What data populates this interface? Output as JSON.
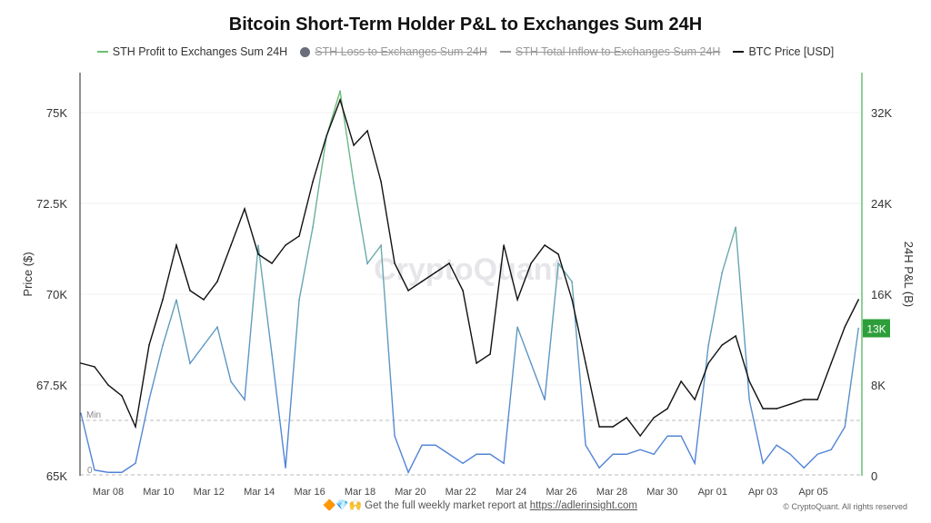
{
  "chart_data": {
    "type": "line",
    "title": "Bitcoin Short-Term Holder P&L to Exchanges Sum 24H",
    "legend": [
      {
        "name": "STH Profit to Exchanges Sum 24H",
        "color": "#6cbf73",
        "enabled": true
      },
      {
        "name": "STH Loss to Exchanges Sum 24H",
        "color": "#6b6e7a",
        "enabled": false
      },
      {
        "name": "STH Total Inflow to Exchanges Sum 24H",
        "color": "#888888",
        "enabled": false
      },
      {
        "name": "BTC Price [USD]",
        "color": "#111111",
        "enabled": true
      }
    ],
    "legend_placement": "top",
    "ylabel_left": "Price ($)",
    "ylabel_right": "24H P&L (B)",
    "ylim_left": [
      65000,
      76000
    ],
    "ylim_right": [
      0,
      35200
    ],
    "yticks_left": [
      "65K",
      "67.5K",
      "70K",
      "72.5K",
      "75K"
    ],
    "yticks_right": [
      "0",
      "8K",
      "16K",
      "24K",
      "32K"
    ],
    "xticks": [
      "Mar 08",
      "Mar 10",
      "Mar 12",
      "Mar 14",
      "Mar 16",
      "Mar 18",
      "Mar 20",
      "Mar 22",
      "Mar 24",
      "Mar 26",
      "Mar 28",
      "Mar 30",
      "Apr 01",
      "Apr 03",
      "Apr 05"
    ],
    "current_value_label": "13K",
    "min_label": "Min",
    "zero_label": "0",
    "grid": true,
    "x": [
      "Mar 06 22:00",
      "Mar 07 11:00",
      "Mar 08 00:00",
      "Mar 08 13:00",
      "Mar 09 02:00",
      "Mar 09 15:00",
      "Mar 10 04:00",
      "Mar 10 17:00",
      "Mar 11 06:00",
      "Mar 11 19:00",
      "Mar 12 08:00",
      "Mar 12 21:00",
      "Mar 13 10:00",
      "Mar 13 23:00",
      "Mar 14 12:00",
      "Mar 15 01:00",
      "Mar 15 14:00",
      "Mar 16 03:00",
      "Mar 16 16:00",
      "Mar 17 05:00",
      "Mar 17 18:00",
      "Mar 18 07:00",
      "Mar 18 20:00",
      "Mar 19 09:00",
      "Mar 19 22:00",
      "Mar 20 11:00",
      "Mar 21 00:00",
      "Mar 21 13:00",
      "Mar 22 02:00",
      "Mar 22 15:00",
      "Mar 23 04:00",
      "Mar 23 17:00",
      "Mar 24 06:00",
      "Mar 24 19:00",
      "Mar 25 08:00",
      "Mar 25 21:00",
      "Mar 26 10:00",
      "Mar 26 23:00",
      "Mar 27 12:00",
      "Mar 28 01:00",
      "Mar 28 14:00",
      "Mar 29 03:00",
      "Mar 29 16:00",
      "Mar 30 05:00",
      "Mar 30 18:00",
      "Mar 31 07:00",
      "Mar 31 20:00",
      "Apr 01 09:00",
      "Apr 01 22:00",
      "Apr 02 11:00",
      "Apr 03 00:00",
      "Apr 03 13:00",
      "Apr 04 02:00",
      "Apr 04 15:00",
      "Apr 05 04:00",
      "Apr 05 17:00",
      "Apr 06 06:00",
      "Apr 06 19:00"
    ],
    "series": [
      {
        "name": "STH Profit to Exchanges Sum 24H",
        "axis": "right",
        "unit": "K",
        "values": [
          5.5,
          0.5,
          0.3,
          0.3,
          1.1,
          6.7,
          11.5,
          15.5,
          9.9,
          11.5,
          13.1,
          8.3,
          6.7,
          20.3,
          10.7,
          0.7,
          15.5,
          21.9,
          29.9,
          33.9,
          25.8,
          18.7,
          20.3,
          3.5,
          0.3,
          2.7,
          2.7,
          1.9,
          1.1,
          1.9,
          1.9,
          1.1,
          13.1,
          9.9,
          6.7,
          18.7,
          17.1,
          2.7,
          0.7,
          1.9,
          1.9,
          2.3,
          1.9,
          3.5,
          3.5,
          1.1,
          11.5,
          17.9,
          21.9,
          6.7,
          1.1,
          2.7,
          1.9,
          0.7,
          1.9,
          2.3,
          4.3,
          13.0
        ]
      },
      {
        "name": "BTC Price [USD]",
        "axis": "left",
        "unit": "K",
        "values": [
          68.1,
          68.0,
          67.5,
          67.2,
          66.35,
          68.6,
          69.85,
          71.35,
          70.1,
          69.85,
          70.35,
          71.35,
          72.35,
          71.1,
          70.85,
          71.35,
          71.6,
          73.1,
          74.35,
          75.35,
          74.1,
          74.5,
          73.1,
          70.85,
          70.1,
          70.35,
          70.6,
          70.85,
          70.1,
          68.1,
          68.35,
          71.35,
          69.85,
          70.85,
          71.35,
          71.1,
          69.85,
          68.1,
          66.35,
          66.35,
          66.6,
          66.1,
          66.6,
          66.85,
          67.6,
          67.1,
          68.1,
          68.6,
          68.85,
          67.6,
          66.85,
          66.85,
          66.97,
          67.1,
          67.1,
          68.1,
          69.1,
          69.85
        ]
      }
    ]
  },
  "watermark": "CryptoQuant",
  "footer": {
    "emojis": "🔶💎🙌",
    "text": "Get the full weekly market report at",
    "link": "https://adlerinsight.com",
    "copyright": "© CryptoQuant. All rights reserved"
  }
}
